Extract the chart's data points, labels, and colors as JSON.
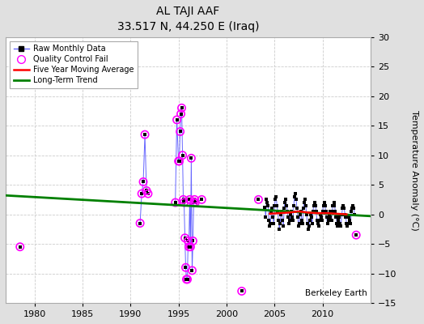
{
  "title": "AL TAJI AAF",
  "subtitle": "33.517 N, 44.250 E (Iraq)",
  "ylabel": "Temperature Anomaly (°C)",
  "credit": "Berkeley Earth",
  "xlim": [
    1977,
    2015
  ],
  "ylim": [
    -15,
    30
  ],
  "yticks": [
    -15,
    -10,
    -5,
    0,
    5,
    10,
    15,
    20,
    25,
    30
  ],
  "xticks": [
    1980,
    1985,
    1990,
    1995,
    2000,
    2005,
    2010
  ],
  "bg_color": "#e0e0e0",
  "plot_bg_color": "#ffffff",
  "trend_x": [
    1977,
    2015
  ],
  "trend_y": [
    3.2,
    -0.3
  ],
  "qc_fail_data": [
    [
      1978.5,
      -5.5
    ],
    [
      1991.0,
      -1.5
    ],
    [
      1991.17,
      3.5
    ],
    [
      1991.33,
      5.5
    ],
    [
      1991.5,
      13.5
    ],
    [
      1991.67,
      4.0
    ],
    [
      1991.83,
      3.5
    ],
    [
      1994.67,
      2.0
    ],
    [
      1994.83,
      16.0
    ],
    [
      1995.0,
      9.0
    ],
    [
      1995.08,
      9.0
    ],
    [
      1995.17,
      14.0
    ],
    [
      1995.25,
      17.0
    ],
    [
      1995.33,
      18.0
    ],
    [
      1995.42,
      10.0
    ],
    [
      1995.5,
      2.5
    ],
    [
      1995.58,
      2.0
    ],
    [
      1995.67,
      -4.0
    ],
    [
      1995.75,
      -9.0
    ],
    [
      1995.83,
      -11.0
    ],
    [
      1995.92,
      -11.0
    ],
    [
      1996.0,
      -4.5
    ],
    [
      1996.08,
      -5.5
    ],
    [
      1996.17,
      2.5
    ],
    [
      1996.25,
      -5.5
    ],
    [
      1996.33,
      9.5
    ],
    [
      1996.42,
      -9.5
    ],
    [
      1996.5,
      -4.5
    ],
    [
      1996.58,
      2.0
    ],
    [
      1996.67,
      2.5
    ],
    [
      1996.75,
      2.0
    ],
    [
      1997.42,
      2.5
    ],
    [
      2001.58,
      -13.0
    ],
    [
      2003.33,
      2.5
    ],
    [
      2013.5,
      -3.5
    ]
  ],
  "dense_data": [
    [
      2004.0,
      1.2
    ],
    [
      2004.08,
      -0.5
    ],
    [
      2004.17,
      2.5
    ],
    [
      2004.25,
      2.0
    ],
    [
      2004.33,
      1.5
    ],
    [
      2004.42,
      -1.0
    ],
    [
      2004.5,
      -2.0
    ],
    [
      2004.58,
      -1.5
    ],
    [
      2004.67,
      0.5
    ],
    [
      2004.75,
      1.0
    ],
    [
      2004.83,
      -0.5
    ],
    [
      2004.92,
      -1.5
    ],
    [
      2005.0,
      1.5
    ],
    [
      2005.08,
      2.5
    ],
    [
      2005.17,
      3.0
    ],
    [
      2005.25,
      1.5
    ],
    [
      2005.33,
      0.5
    ],
    [
      2005.42,
      -1.0
    ],
    [
      2005.5,
      -2.5
    ],
    [
      2005.58,
      -1.5
    ],
    [
      2005.67,
      0.0
    ],
    [
      2005.75,
      0.5
    ],
    [
      2005.83,
      -1.0
    ],
    [
      2005.92,
      -2.0
    ],
    [
      2006.0,
      1.0
    ],
    [
      2006.08,
      2.0
    ],
    [
      2006.17,
      2.5
    ],
    [
      2006.25,
      1.5
    ],
    [
      2006.33,
      0.5
    ],
    [
      2006.42,
      -0.5
    ],
    [
      2006.5,
      -1.5
    ],
    [
      2006.58,
      -1.0
    ],
    [
      2006.67,
      0.0
    ],
    [
      2006.75,
      0.5
    ],
    [
      2006.83,
      -0.5
    ],
    [
      2006.92,
      -1.0
    ],
    [
      2007.0,
      1.5
    ],
    [
      2007.08,
      3.0
    ],
    [
      2007.17,
      3.5
    ],
    [
      2007.25,
      2.5
    ],
    [
      2007.33,
      1.0
    ],
    [
      2007.42,
      -0.5
    ],
    [
      2007.5,
      -2.0
    ],
    [
      2007.58,
      -1.5
    ],
    [
      2007.67,
      0.0
    ],
    [
      2007.75,
      0.5
    ],
    [
      2007.83,
      -1.0
    ],
    [
      2007.92,
      -1.5
    ],
    [
      2008.0,
      1.0
    ],
    [
      2008.08,
      2.0
    ],
    [
      2008.17,
      2.5
    ],
    [
      2008.25,
      1.5
    ],
    [
      2008.33,
      0.0
    ],
    [
      2008.42,
      -1.5
    ],
    [
      2008.5,
      -2.5
    ],
    [
      2008.58,
      -2.0
    ],
    [
      2008.67,
      -1.0
    ],
    [
      2008.75,
      0.0
    ],
    [
      2008.83,
      -0.5
    ],
    [
      2008.92,
      -1.5
    ],
    [
      2009.0,
      0.5
    ],
    [
      2009.08,
      1.5
    ],
    [
      2009.17,
      2.0
    ],
    [
      2009.25,
      1.5
    ],
    [
      2009.33,
      0.5
    ],
    [
      2009.42,
      -1.0
    ],
    [
      2009.5,
      -1.5
    ],
    [
      2009.58,
      -2.0
    ],
    [
      2009.67,
      -1.0
    ],
    [
      2009.75,
      0.0
    ],
    [
      2009.83,
      -0.5
    ],
    [
      2009.92,
      -1.0
    ],
    [
      2010.0,
      0.5
    ],
    [
      2010.08,
      1.5
    ],
    [
      2010.17,
      2.0
    ],
    [
      2010.25,
      1.5
    ],
    [
      2010.33,
      0.5
    ],
    [
      2010.42,
      -0.5
    ],
    [
      2010.5,
      -1.5
    ],
    [
      2010.58,
      -1.0
    ],
    [
      2010.67,
      0.0
    ],
    [
      2010.75,
      0.5
    ],
    [
      2010.83,
      -0.5
    ],
    [
      2010.92,
      -1.0
    ],
    [
      2011.0,
      0.5
    ],
    [
      2011.08,
      1.5
    ],
    [
      2011.17,
      2.0
    ],
    [
      2011.25,
      1.5
    ],
    [
      2011.33,
      0.5
    ],
    [
      2011.42,
      -0.5
    ],
    [
      2011.5,
      -1.5
    ],
    [
      2011.58,
      -2.0
    ],
    [
      2011.67,
      -1.0
    ],
    [
      2011.75,
      -0.5
    ],
    [
      2011.83,
      -1.5
    ],
    [
      2011.92,
      -2.0
    ],
    [
      2012.0,
      0.0
    ],
    [
      2012.08,
      1.0
    ],
    [
      2012.17,
      1.5
    ],
    [
      2012.25,
      1.0
    ],
    [
      2012.33,
      0.0
    ],
    [
      2012.42,
      -0.5
    ],
    [
      2012.5,
      -1.5
    ],
    [
      2012.58,
      -2.0
    ],
    [
      2012.67,
      -1.5
    ],
    [
      2012.75,
      -0.5
    ],
    [
      2012.83,
      -1.0
    ],
    [
      2012.92,
      -1.5
    ],
    [
      2013.0,
      0.5
    ],
    [
      2013.08,
      1.0
    ],
    [
      2013.17,
      1.5
    ],
    [
      2013.25,
      1.0
    ],
    [
      2013.33,
      0.0
    ]
  ],
  "moving_avg_x": [
    2004.5,
    2005.5,
    2006.5,
    2007.5,
    2008.5,
    2009.5,
    2010.5,
    2011.5,
    2012.5
  ],
  "moving_avg_y": [
    0.1,
    0.2,
    0.3,
    0.5,
    0.3,
    0.2,
    0.2,
    0.1,
    0.0
  ]
}
